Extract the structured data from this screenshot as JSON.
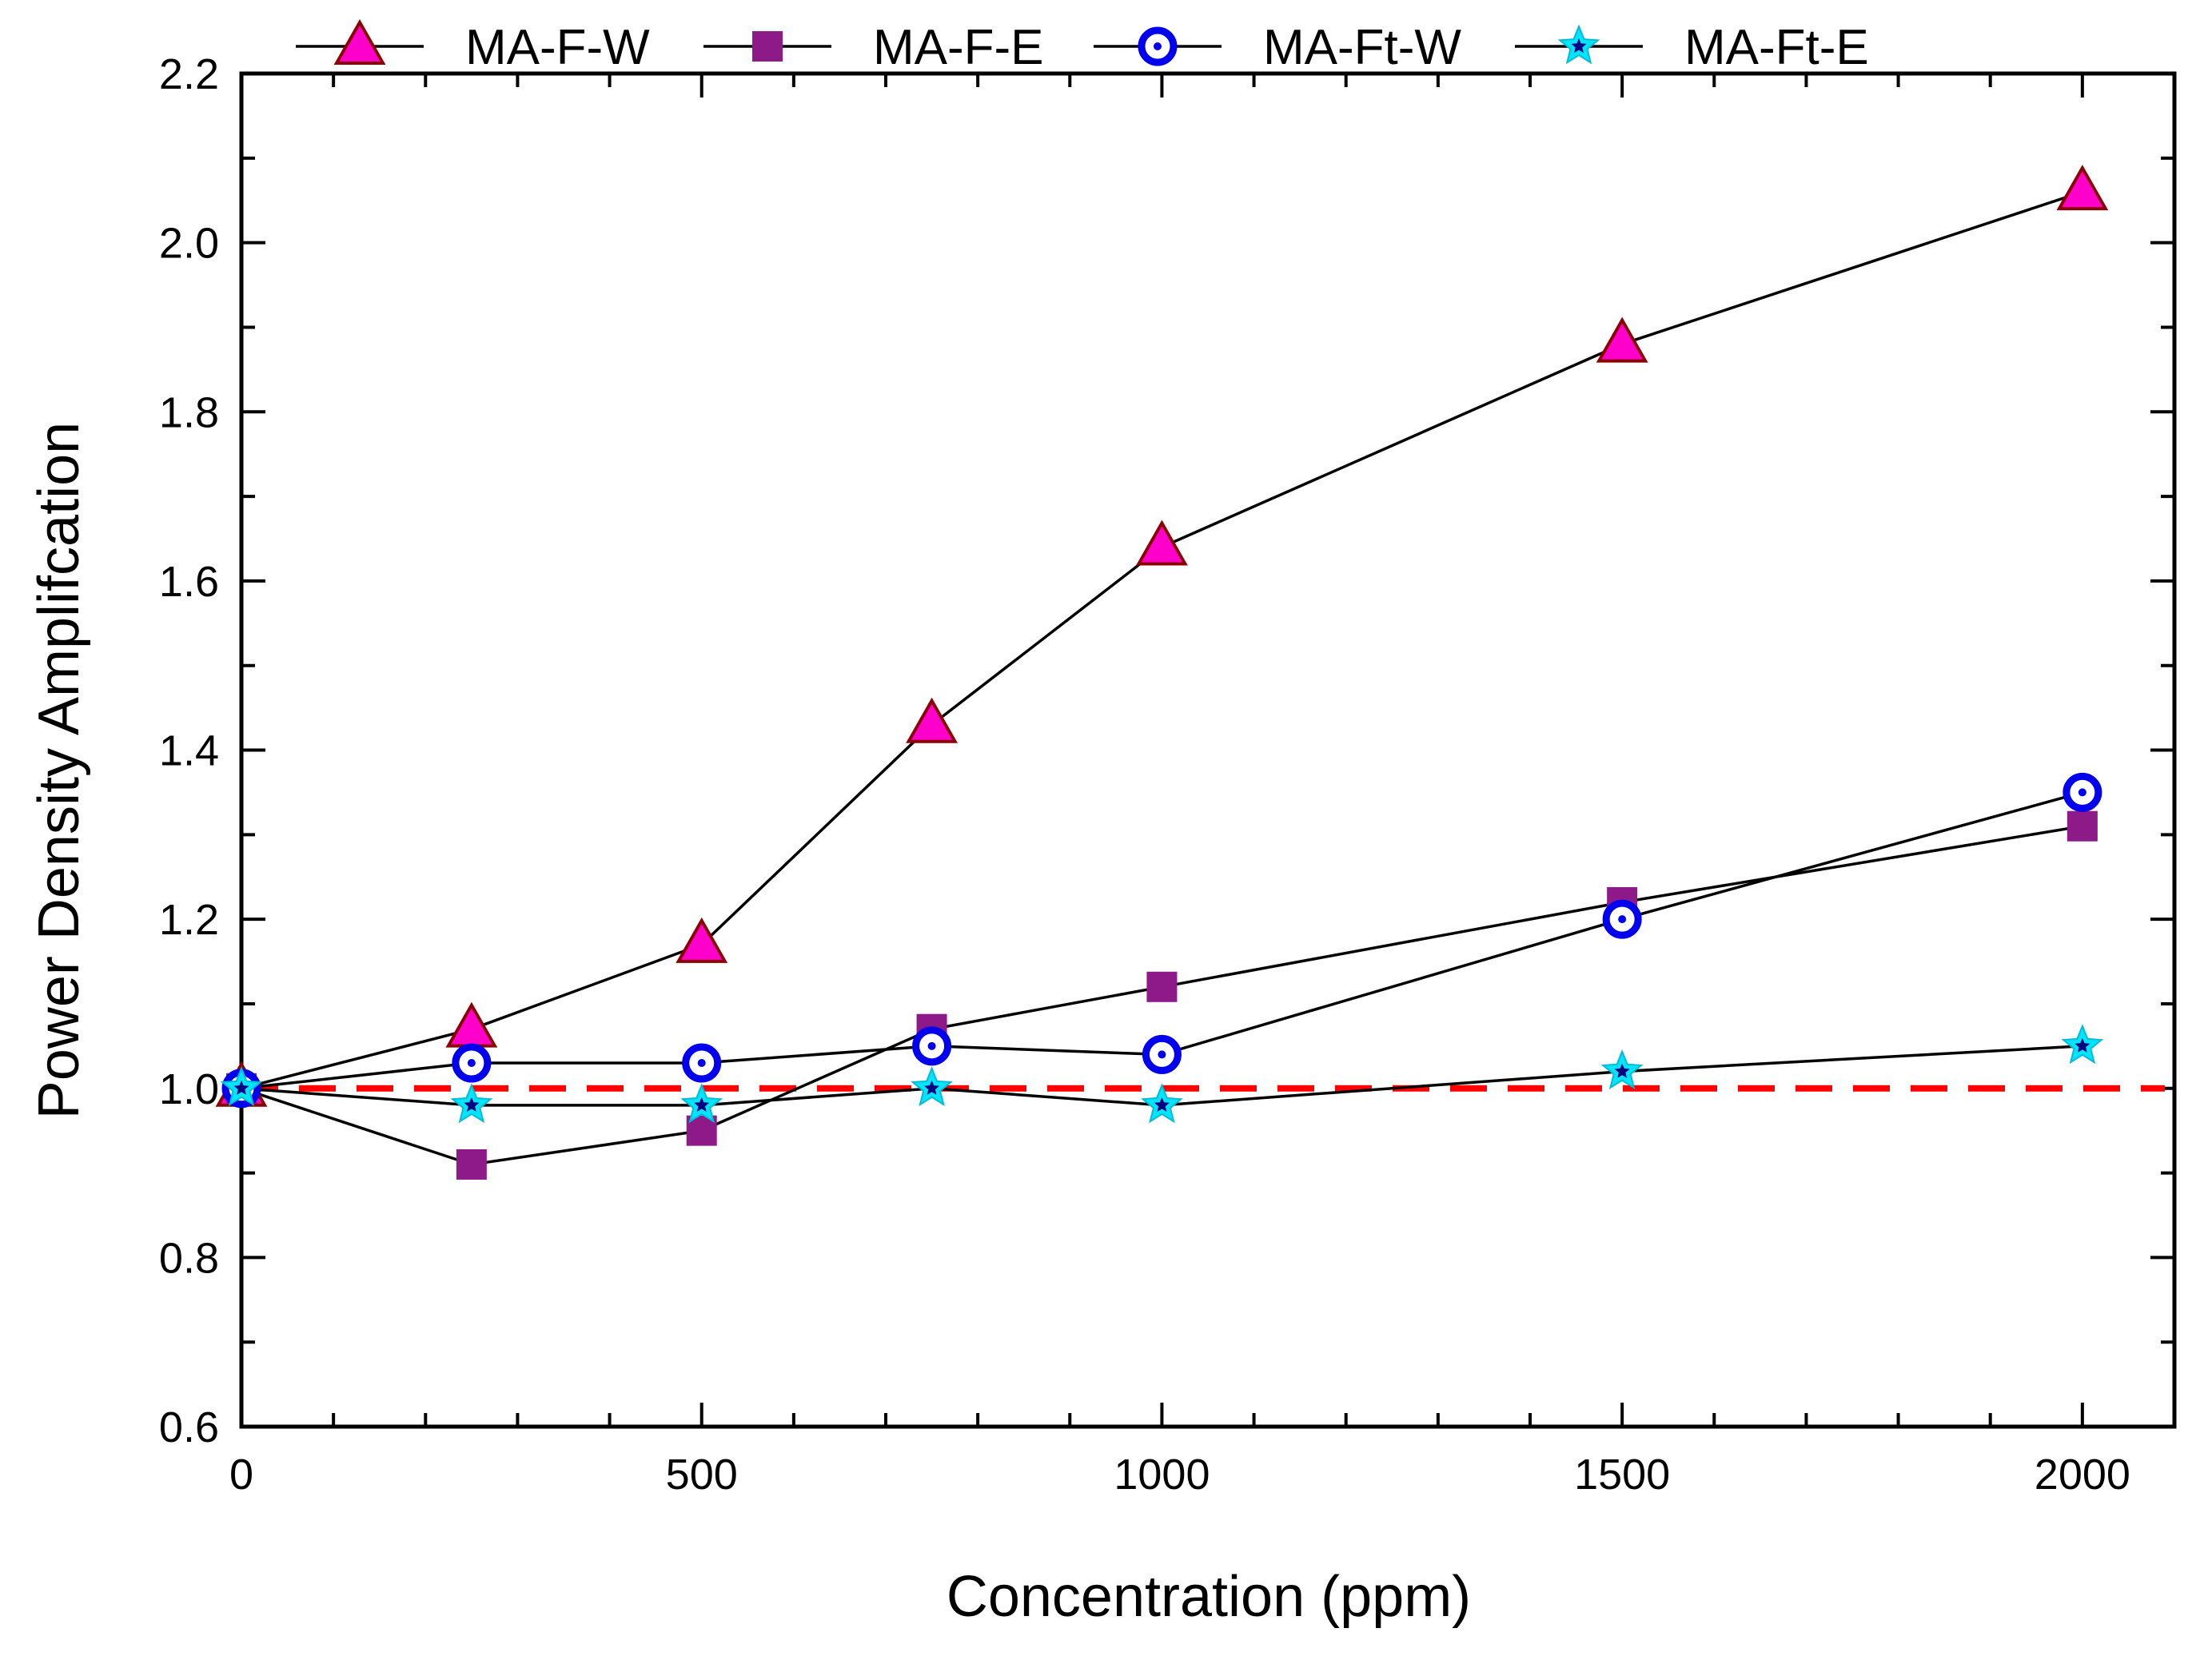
{
  "chart_data": {
    "type": "line",
    "title": "",
    "xlabel": "Concentration (ppm)",
    "ylabel": "Power Density Amplifcation",
    "xlim": [
      0,
      2100
    ],
    "ylim": [
      0.6,
      2.2
    ],
    "x_ticks": [
      0,
      500,
      1000,
      1500,
      2000
    ],
    "x_tick_labels": [
      "0",
      "500",
      "1000",
      "1500",
      "2000"
    ],
    "y_ticks": [
      0.6,
      0.8,
      1.0,
      1.2,
      1.4,
      1.6,
      1.8,
      2.0,
      2.2
    ],
    "y_tick_labels": [
      "0.6",
      "0.8",
      "1.0",
      "1.2",
      "1.4",
      "1.6",
      "1.8",
      "2.0",
      "2.2"
    ],
    "grid": false,
    "legend_position": "top",
    "x": [
      0,
      250,
      500,
      750,
      1000,
      1500,
      2000
    ],
    "series": [
      {
        "name": "MA-F-W",
        "marker": "triangle",
        "color": "#ff00cc",
        "values": [
          1.0,
          1.07,
          1.17,
          1.43,
          1.64,
          1.88,
          2.06
        ]
      },
      {
        "name": "MA-F-E",
        "marker": "square",
        "color": "#8e1a8a",
        "values": [
          1.0,
          0.91,
          0.95,
          1.07,
          1.12,
          1.22,
          1.31
        ]
      },
      {
        "name": "MA-Ft-W",
        "marker": "circle",
        "color": "#0000ee",
        "values": [
          1.0,
          1.03,
          1.03,
          1.05,
          1.04,
          1.2,
          1.35
        ]
      },
      {
        "name": "MA-Ft-E",
        "marker": "star",
        "color": "#00e5ff",
        "values": [
          1.0,
          0.98,
          0.98,
          1.0,
          0.98,
          1.02,
          1.05
        ]
      }
    ],
    "reference_line": {
      "y": 1.0,
      "color": "#ff0000",
      "style": "dashed"
    }
  }
}
